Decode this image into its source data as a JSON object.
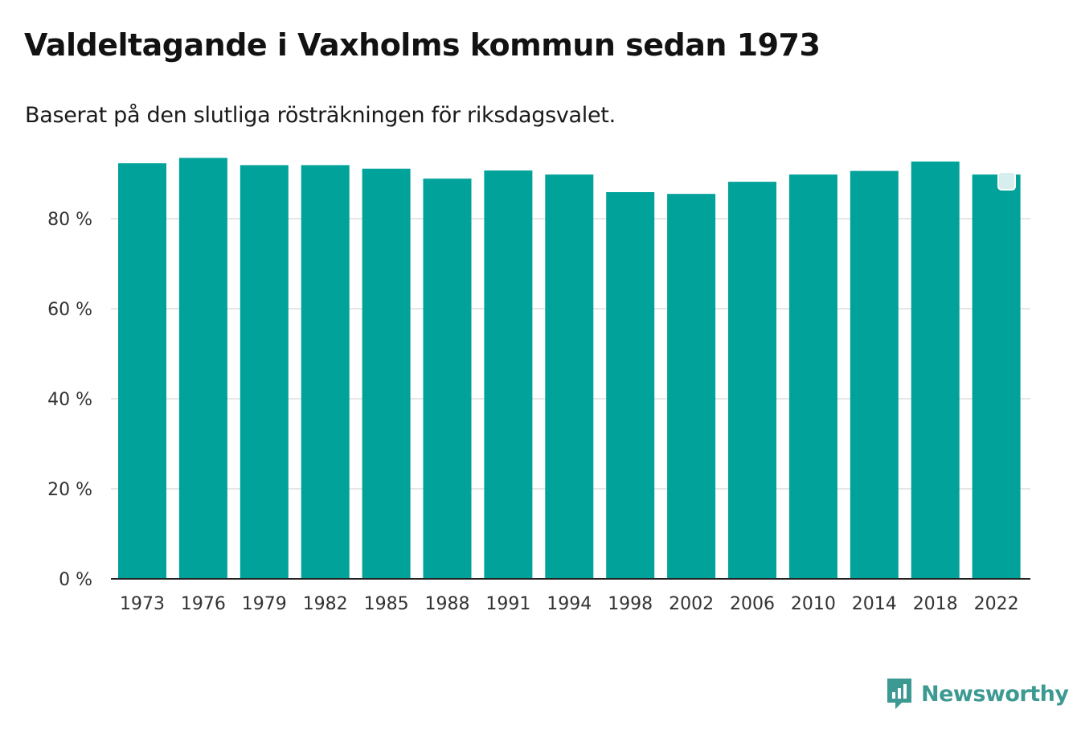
{
  "title": "Valdeltagande i Vaxholms kommun sedan 1973",
  "subtitle": "Baserat på den slutliga rösträkningen för riksdagsvalet.",
  "colors": {
    "bar": "#00a29a",
    "grid": "#dddddd",
    "axis": "#222222",
    "brand": "#3d9a92"
  },
  "brand": {
    "name": "Newsworthy",
    "icon": "newsworthy-logo-icon"
  },
  "chart_data": {
    "type": "bar",
    "categories": [
      "1973",
      "1976",
      "1979",
      "1982",
      "1985",
      "1988",
      "1991",
      "1994",
      "1998",
      "2002",
      "2006",
      "2010",
      "2014",
      "2018",
      "2022"
    ],
    "values": [
      92.3,
      93.5,
      91.9,
      91.9,
      91.1,
      88.9,
      90.7,
      89.8,
      85.9,
      85.5,
      88.2,
      89.8,
      90.6,
      92.7,
      89.8
    ],
    "yticks": [
      0,
      20,
      40,
      60,
      80
    ],
    "ytick_labels": [
      "0 %",
      "20 %",
      "40 %",
      "60 %",
      "80 %"
    ],
    "ylim": [
      0,
      100
    ],
    "xlabel": "",
    "ylabel": "",
    "grid": true,
    "legend": "none"
  }
}
